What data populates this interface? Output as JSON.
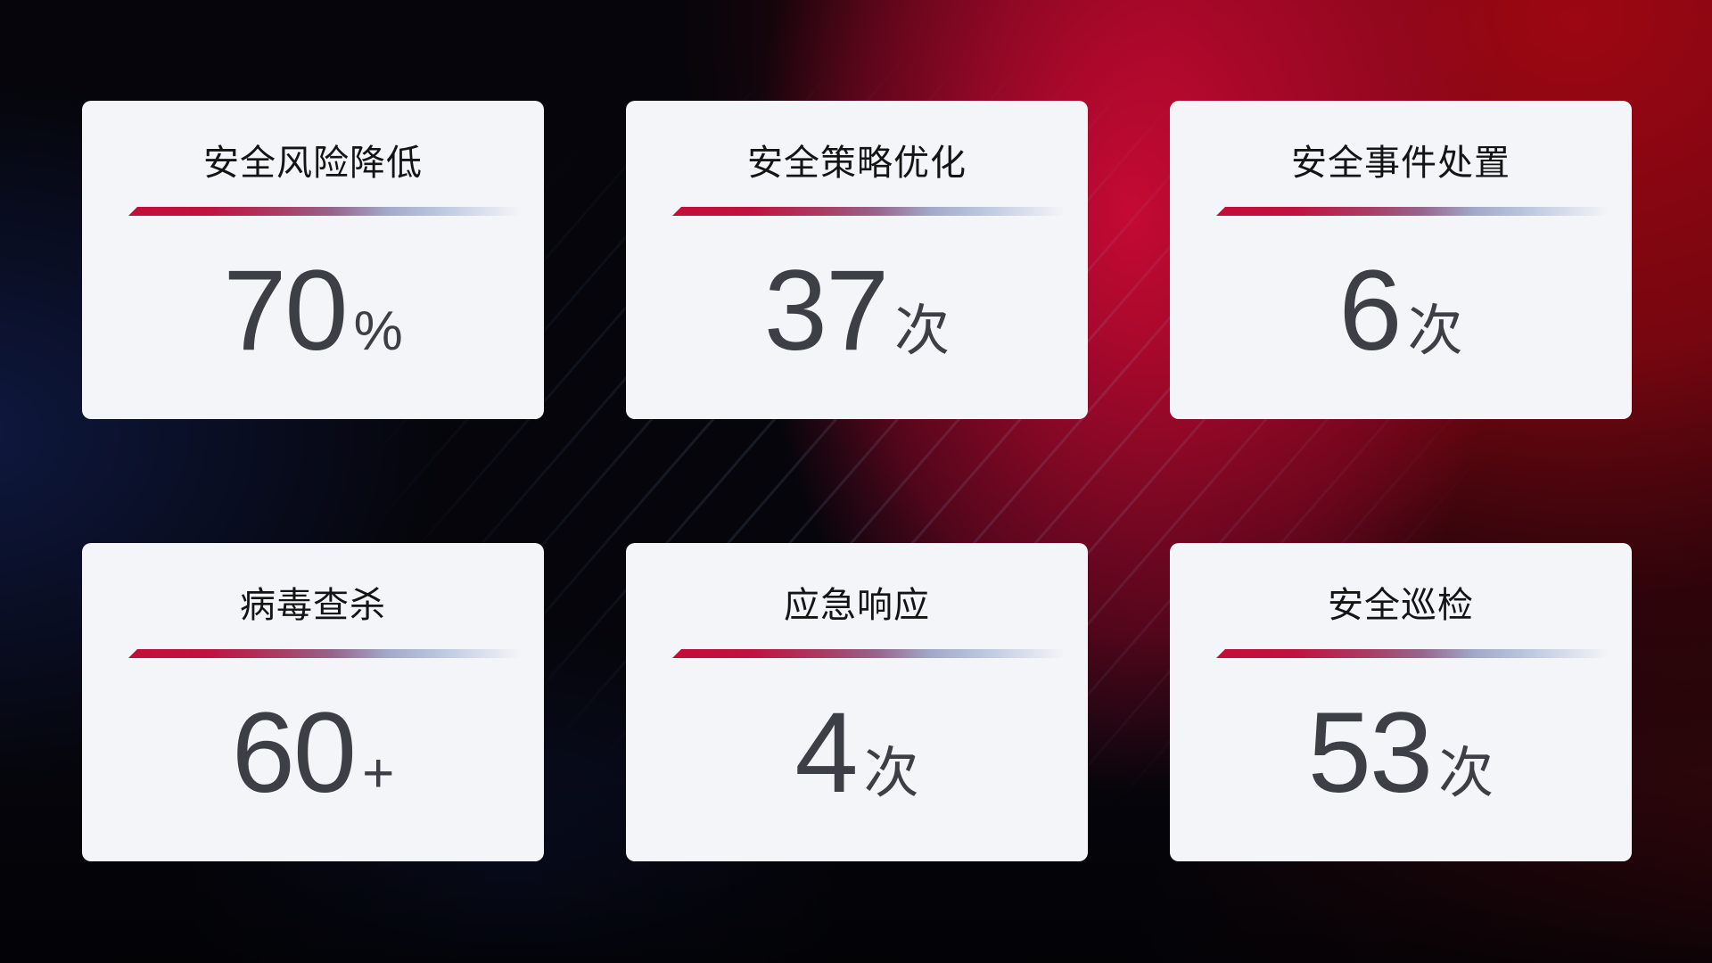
{
  "colors": {
    "background_base": "#05050b",
    "background_red": "#9c0713",
    "background_crimson_band": "#cd0a37",
    "background_blue_glow": "#182c74",
    "card_background": "#f4f5f8",
    "accent_line_red": "#c30d38",
    "accent_line_blue": "#b9c4dc",
    "title_text": "#141414",
    "value_text": "#3c3f45"
  },
  "cards": [
    {
      "title": "安全风险降低",
      "value": "70",
      "unit": "%"
    },
    {
      "title": "安全策略优化",
      "value": "37",
      "unit": "次"
    },
    {
      "title": "安全事件处置",
      "value": "6",
      "unit": "次"
    },
    {
      "title": "病毒查杀",
      "value": "60",
      "unit": "+"
    },
    {
      "title": "应急响应",
      "value": "4",
      "unit": "次"
    },
    {
      "title": "安全巡检",
      "value": "53",
      "unit": "次"
    }
  ]
}
